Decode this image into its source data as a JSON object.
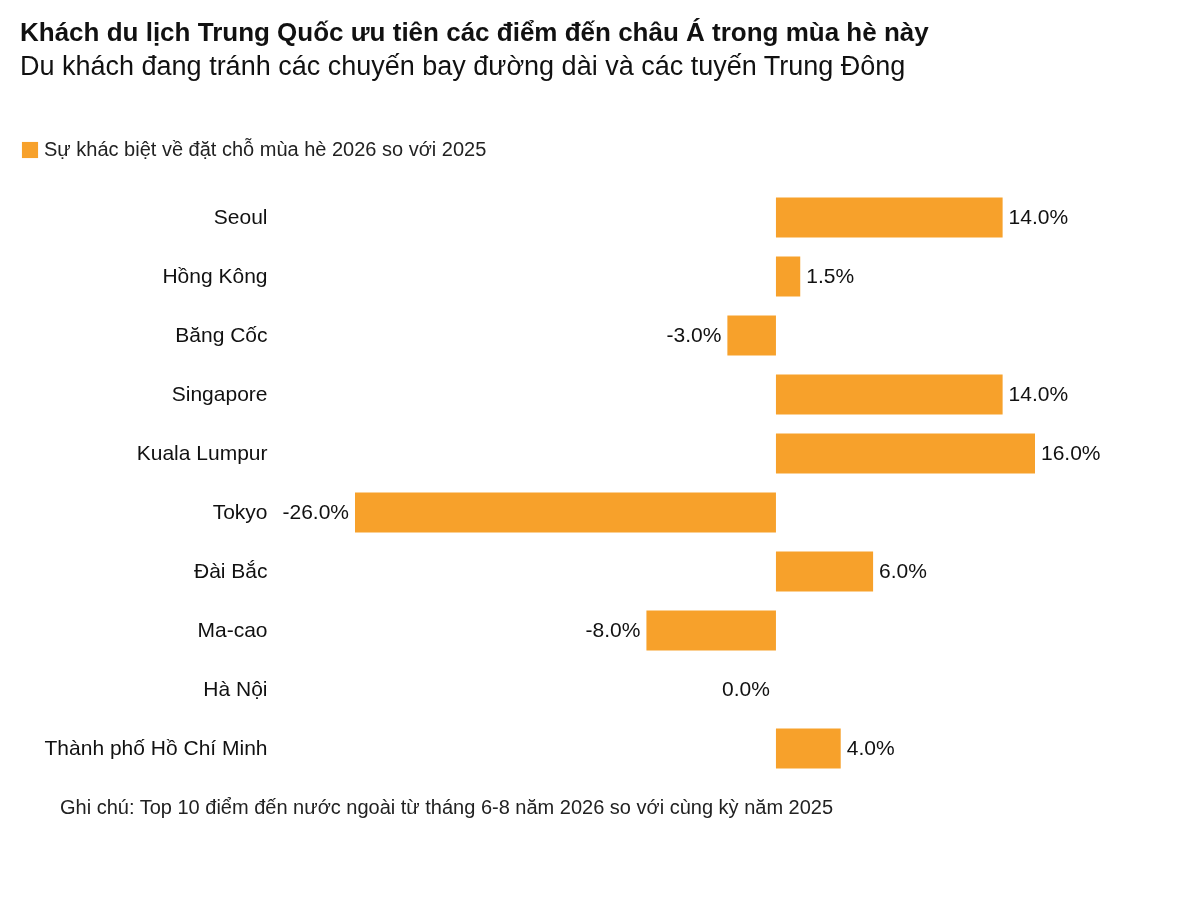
{
  "chart_data": {
    "type": "bar",
    "orientation": "horizontal",
    "title": "Khách du lịch Trung Quốc ưu tiên các điểm đến châu Á trong mùa hè này",
    "subtitle": "Du khách đang tránh các chuyến bay đường dài và các tuyến Trung Đông",
    "categories": [
      "Seoul",
      "Hồng Kông",
      "Băng Cốc",
      "Singapore",
      "Kuala Lumpur",
      "Tokyo",
      "Đài Bắc",
      "Ma-cao",
      "Hà Nội",
      "Thành phố Hồ Chí Minh"
    ],
    "series": [
      {
        "name": "Sự khác biệt về đặt chỗ mùa hè 2026 so với 2025",
        "color": "#f7a12b",
        "values": [
          14.0,
          1.5,
          -3.0,
          14.0,
          16.0,
          -26.0,
          6.0,
          -8.0,
          0.0,
          4.0
        ],
        "value_labels": [
          "14.0%",
          "1.5%",
          "-3.0%",
          "14.0%",
          "16.0%",
          "-26.0%",
          "6.0%",
          "-8.0%",
          "0.0%",
          "4.0%"
        ]
      }
    ],
    "legend": "top left",
    "grid": false,
    "annotations": [
      "Ghi chú: Top 10 điểm đến nước ngoài từ tháng 6-8 năm 2026 so với cùng kỳ năm 2025"
    ]
  }
}
